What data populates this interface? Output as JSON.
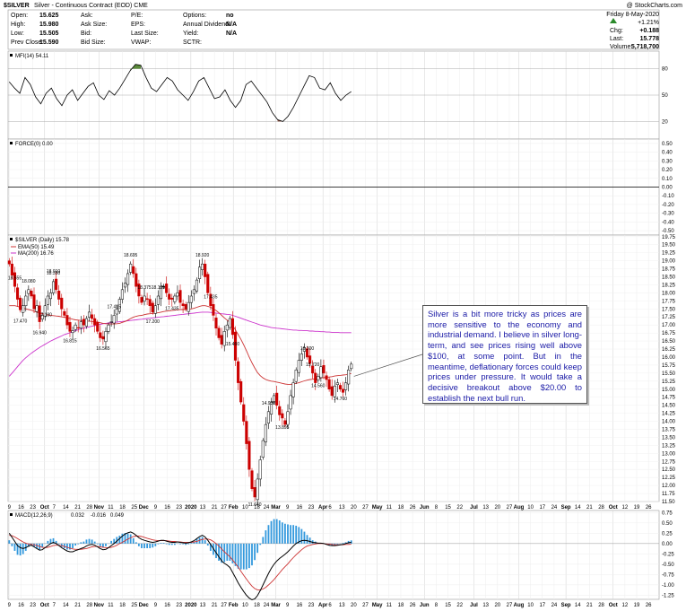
{
  "header": {
    "title_symbol": "$SILVER",
    "title_desc": "Silver - Continuous Contract (EOD) CME",
    "watermark": "@ StockCharts.com",
    "date": "Friday  8-May-2020",
    "fields": [
      {
        "label": "Open:",
        "value": "15.625"
      },
      {
        "label": "High:",
        "value": "15.980"
      },
      {
        "label": "Low:",
        "value": "15.505"
      },
      {
        "label": "Prev Close:",
        "value": "15.590"
      }
    ],
    "fields2": [
      {
        "label": "Ask:",
        "value": ""
      },
      {
        "label": "Ask Size:",
        "value": ""
      },
      {
        "label": "Bid:",
        "value": ""
      },
      {
        "label": "Bid Size:",
        "value": ""
      }
    ],
    "fields3": [
      {
        "label": "P/E:",
        "value": ""
      },
      {
        "label": "EPS:",
        "value": ""
      },
      {
        "label": "Last Size:",
        "value": ""
      },
      {
        "label": "VWAP:",
        "value": ""
      }
    ],
    "fields4": [
      {
        "label": "Options:",
        "value": "no"
      },
      {
        "label": "Annual Dividend:",
        "value": "N/A"
      },
      {
        "label": "Yield:",
        "value": "N/A"
      },
      {
        "label": "SCTR:",
        "value": ""
      }
    ],
    "change_pct": "+1.21%",
    "chg_label": "Chg:",
    "chg_value": "+0.188",
    "last_label": "Last:",
    "last_value": "15.778",
    "vol_label": "Volume:",
    "vol_value": "5,718,700"
  },
  "annotation": "Silver is a bit more tricky as prices are more sensitive to the economy and industrial demand. I believe in silver long-term, and see prices rising well above $100, at some point. But in the meantime, deflationary forces could keep prices under pressure. It would take a decisive breakout above $20.00 to establish the next bull run.",
  "colors": {
    "up": "#000000",
    "down": "#cc0000",
    "ema": "#cc3333",
    "ma": "#cc33cc",
    "mfi_over": "#5a8a3a",
    "mfi_under": "#8a4a3a",
    "macd_hist": "#3399dd",
    "signal": "#cc3333"
  },
  "chart_data": [
    {
      "type": "line",
      "title": "MFI(14) 54.11",
      "y_ticks": [
        80,
        50,
        20
      ],
      "ylim": [
        0,
        100
      ],
      "values": [
        65,
        58,
        52,
        70,
        62,
        48,
        40,
        52,
        58,
        46,
        38,
        50,
        56,
        44,
        52,
        60,
        64,
        50,
        45,
        55,
        50,
        58,
        68,
        78,
        85,
        84,
        70,
        58,
        54,
        62,
        70,
        66,
        56,
        50,
        44,
        54,
        66,
        70,
        58,
        46,
        48,
        56,
        44,
        36,
        44,
        62,
        66,
        58,
        50,
        42,
        30,
        22,
        20,
        26,
        36,
        48,
        60,
        72,
        70,
        58,
        56,
        64,
        52,
        44,
        50,
        54
      ]
    },
    {
      "type": "line",
      "title": "FORCE(0) 0.00",
      "y_ticks": [
        "0.50",
        "0.40",
        "0.30",
        "0.20",
        "0.10",
        "0.00",
        "-0.10",
        "-0.20",
        "-0.30",
        "-0.40",
        "-0.50"
      ],
      "ylim": [
        -0.55,
        0.55
      ],
      "values": [
        0
      ]
    },
    {
      "type": "candlestick",
      "title": "$SILVER (Daily) 15.78",
      "legend": [
        "EMA(50) 15.49",
        "MA(200) 16.76"
      ],
      "ylim": [
        11.5,
        19.8
      ],
      "y_ticks": [
        "19.75",
        "19.50",
        "19.25",
        "19.00",
        "18.75",
        "18.50",
        "18.25",
        "18.00",
        "17.75",
        "17.50",
        "17.25",
        "17.00",
        "16.75",
        "16.50",
        "16.25",
        "16.00",
        "15.75",
        "15.50",
        "15.25",
        "15.00",
        "14.75",
        "14.50",
        "14.25",
        "14.00",
        "13.75",
        "13.50",
        "13.25",
        "13.00",
        "12.75",
        "12.50",
        "12.25",
        "12.00",
        "11.75",
        "11.50"
      ],
      "closes": [
        18.9,
        18.55,
        18.2,
        17.8,
        17.47,
        17.6,
        17.9,
        18.1,
        17.9,
        17.5,
        17.6,
        17.1,
        17.3,
        17.6,
        17.9,
        18.0,
        18.35,
        18.1,
        17.8,
        17.5,
        17.3,
        17.0,
        16.8,
        16.82,
        17.0,
        16.9,
        17.1,
        17.0,
        17.2,
        17.4,
        17.2,
        17.0,
        16.8,
        16.6,
        16.56,
        16.8,
        17.0,
        17.1,
        17.3,
        17.5,
        17.8,
        18.1,
        18.3,
        18.6,
        18.9,
        18.6,
        18.2,
        17.9,
        17.7,
        17.9,
        17.8,
        17.6,
        17.4,
        17.6,
        17.9,
        18.2,
        18.2,
        18.0,
        17.8,
        17.8,
        17.9,
        18.0,
        17.7,
        17.6,
        17.5,
        17.7,
        17.9,
        18.1,
        18.4,
        18.8,
        18.9,
        18.5,
        18.0,
        17.6,
        17.3,
        16.9,
        16.6,
        16.4,
        16.8,
        17.0,
        17.2,
        16.7,
        15.9,
        15.2,
        14.6,
        14.0,
        13.3,
        12.5,
        11.9,
        11.64,
        12.2,
        12.8,
        13.4,
        13.9,
        14.3,
        14.6,
        14.8,
        14.5,
        14.2,
        14.1,
        13.9,
        14.3,
        14.8,
        15.2,
        15.6,
        15.9,
        16.1,
        16.3,
        16.0,
        15.8,
        15.5,
        15.2,
        15.4,
        15.7,
        15.5,
        15.3,
        15.0,
        14.8,
        15.1,
        15.2,
        15.0,
        14.9,
        15.2,
        15.6,
        15.78
      ],
      "price_labels": [
        {
          "text": "18.555"
        },
        {
          "text": "18.910"
        },
        {
          "text": "17.470"
        },
        {
          "text": "18.080"
        },
        {
          "text": "16.940"
        },
        {
          "text": "17.180"
        },
        {
          "text": "18.350"
        },
        {
          "text": "16.815"
        },
        {
          "text": "16.565"
        },
        {
          "text": "17.415"
        },
        {
          "text": "18.695"
        },
        {
          "text": "18.375"
        },
        {
          "text": "17.200"
        },
        {
          "text": "18.125"
        },
        {
          "text": "17.435"
        },
        {
          "text": "18.920"
        },
        {
          "text": "17.435"
        },
        {
          "text": "15.460"
        },
        {
          "text": "11.640"
        },
        {
          "text": "14.930"
        },
        {
          "text": "13.895"
        },
        {
          "text": "16.300"
        },
        {
          "text": "15.720"
        },
        {
          "text": "14.560"
        },
        {
          "text": "14.760"
        }
      ],
      "ema50": [
        17.6,
        17.6,
        17.6,
        17.58,
        17.55,
        17.52,
        17.5,
        17.48,
        17.46,
        17.43,
        17.4,
        17.37,
        17.35,
        17.33,
        17.31,
        17.3,
        17.29,
        17.28,
        17.27,
        17.25,
        17.24,
        17.22,
        17.2,
        17.18,
        17.16,
        17.15,
        17.14,
        17.13,
        17.12,
        17.12,
        17.11,
        17.1,
        17.09,
        17.07,
        17.05,
        17.04,
        17.03,
        17.03,
        17.03,
        17.04,
        17.05,
        17.08,
        17.11,
        17.15,
        17.2,
        17.24,
        17.27,
        17.29,
        17.3,
        17.32,
        17.34,
        17.35,
        17.36,
        17.37,
        17.38,
        17.4,
        17.42,
        17.43,
        17.44,
        17.45,
        17.46,
        17.47,
        17.48,
        17.48,
        17.48,
        17.49,
        17.5,
        17.52,
        17.55,
        17.58,
        17.6,
        17.6,
        17.58,
        17.55,
        17.5,
        17.45,
        17.38,
        17.3,
        17.22,
        17.15,
        17.08,
        16.98,
        16.85,
        16.7,
        16.55,
        16.38,
        16.2,
        16.0,
        15.82,
        15.66,
        15.52,
        15.42,
        15.35,
        15.3,
        15.27,
        15.25,
        15.24,
        15.22,
        15.2,
        15.18,
        15.16,
        15.15,
        15.15,
        15.16,
        15.18,
        15.2,
        15.23,
        15.26,
        15.28,
        15.3,
        15.31,
        15.32,
        15.33,
        15.35,
        15.36,
        15.37,
        15.38,
        15.39,
        15.41,
        15.42,
        15.43,
        15.44,
        15.45,
        15.47,
        15.49
      ],
      "ma200": [
        15.4,
        15.5,
        15.6,
        15.7,
        15.8,
        15.9,
        15.98,
        16.05,
        16.12,
        16.18,
        16.24,
        16.3,
        16.35,
        16.4,
        16.45,
        16.5,
        16.54,
        16.58,
        16.62,
        16.66,
        16.7,
        16.73,
        16.76,
        16.79,
        16.82,
        16.85,
        16.88,
        16.9,
        16.92,
        16.94,
        16.96,
        16.98,
        17.0,
        17.02,
        17.04,
        17.05,
        17.06,
        17.07,
        17.08,
        17.09,
        17.1,
        17.11,
        17.12,
        17.13,
        17.14,
        17.15,
        17.16,
        17.17,
        17.18,
        17.19,
        17.2,
        17.21,
        17.22,
        17.23,
        17.24,
        17.25,
        17.26,
        17.27,
        17.28,
        17.29,
        17.3,
        17.31,
        17.32,
        17.33,
        17.34,
        17.35,
        17.36,
        17.37,
        17.38,
        17.39,
        17.4,
        17.4,
        17.4,
        17.39,
        17.38,
        17.37,
        17.36,
        17.35,
        17.34,
        17.33,
        17.32,
        17.3,
        17.27,
        17.24,
        17.21,
        17.18,
        17.15,
        17.12,
        17.09,
        17.06,
        17.03,
        17.0,
        16.98,
        16.96,
        16.94,
        16.92,
        16.91,
        16.9,
        16.89,
        16.88,
        16.87,
        16.86,
        16.85,
        16.84,
        16.84,
        16.83,
        16.83,
        16.82,
        16.82,
        16.81,
        16.81,
        16.8,
        16.8,
        16.79,
        16.79,
        16.78,
        16.78,
        16.77,
        16.77,
        16.77,
        16.76,
        16.76,
        16.76,
        16.76,
        16.76
      ]
    },
    {
      "type": "line",
      "title": "MACD(12,26,9)",
      "legend": [
        "0.032",
        "-0.016",
        "0.049"
      ],
      "ylim": [
        -1.35,
        0.8
      ],
      "y_ticks": [
        "0.75",
        "0.50",
        "0.25",
        "0.00",
        "-0.25",
        "-0.50",
        "-0.75",
        "-1.00",
        "-1.25"
      ],
      "macd": [
        0.25,
        0.15,
        0.05,
        -0.05,
        -0.1,
        -0.12,
        -0.1,
        -0.06,
        -0.04,
        -0.08,
        -0.12,
        -0.16,
        -0.15,
        -0.1,
        -0.05,
        0.0,
        0.03,
        0.0,
        -0.05,
        -0.1,
        -0.14,
        -0.18,
        -0.2,
        -0.2,
        -0.17,
        -0.15,
        -0.12,
        -0.1,
        -0.06,
        -0.03,
        -0.02,
        -0.04,
        -0.08,
        -0.12,
        -0.15,
        -0.14,
        -0.1,
        -0.05,
        0.0,
        0.06,
        0.12,
        0.18,
        0.23,
        0.26,
        0.28,
        0.25,
        0.2,
        0.14,
        0.1,
        0.08,
        0.06,
        0.04,
        0.03,
        0.04,
        0.06,
        0.08,
        0.08,
        0.06,
        0.04,
        0.03,
        0.03,
        0.04,
        0.03,
        0.02,
        0.01,
        0.02,
        0.04,
        0.07,
        0.12,
        0.17,
        0.2,
        0.16,
        0.08,
        -0.02,
        -0.12,
        -0.22,
        -0.32,
        -0.42,
        -0.48,
        -0.52,
        -0.58,
        -0.7,
        -0.82,
        -0.95,
        -1.06,
        -1.16,
        -1.25,
        -1.32,
        -1.36,
        -1.34,
        -1.26,
        -1.14,
        -1.0,
        -0.86,
        -0.72,
        -0.6,
        -0.5,
        -0.42,
        -0.36,
        -0.31,
        -0.26,
        -0.2,
        -0.13,
        -0.06,
        0.0,
        0.04,
        0.07,
        0.08,
        0.07,
        0.05,
        0.03,
        0.02,
        0.01,
        0.01,
        0.0,
        -0.02,
        -0.04,
        -0.05,
        -0.05,
        -0.04,
        -0.03,
        -0.02,
        0.0,
        0.02,
        0.032
      ],
      "signal": [
        0.2,
        0.19,
        0.16,
        0.12,
        0.08,
        0.04,
        0.01,
        -0.01,
        -0.02,
        -0.03,
        -0.05,
        -0.07,
        -0.09,
        -0.1,
        -0.09,
        -0.07,
        -0.05,
        -0.04,
        -0.04,
        -0.05,
        -0.07,
        -0.09,
        -0.11,
        -0.13,
        -0.14,
        -0.14,
        -0.14,
        -0.13,
        -0.12,
        -0.1,
        -0.08,
        -0.07,
        -0.07,
        -0.08,
        -0.09,
        -0.1,
        -0.1,
        -0.09,
        -0.07,
        -0.04,
        0.0,
        0.03,
        0.07,
        0.11,
        0.14,
        0.17,
        0.18,
        0.18,
        0.17,
        0.15,
        0.13,
        0.11,
        0.09,
        0.08,
        0.07,
        0.07,
        0.07,
        0.07,
        0.06,
        0.05,
        0.05,
        0.04,
        0.04,
        0.03,
        0.03,
        0.03,
        0.03,
        0.04,
        0.05,
        0.08,
        0.1,
        0.11,
        0.11,
        0.09,
        0.05,
        0.0,
        -0.06,
        -0.13,
        -0.2,
        -0.26,
        -0.32,
        -0.4,
        -0.48,
        -0.57,
        -0.67,
        -0.77,
        -0.86,
        -0.95,
        -1.03,
        -1.09,
        -1.12,
        -1.12,
        -1.1,
        -1.06,
        -1.0,
        -0.94,
        -0.87,
        -0.79,
        -0.71,
        -0.63,
        -0.56,
        -0.49,
        -0.41,
        -0.34,
        -0.27,
        -0.21,
        -0.15,
        -0.1,
        -0.06,
        -0.04,
        -0.02,
        -0.01,
        0.0,
        0.0,
        0.0,
        -0.01,
        -0.01,
        -0.02,
        -0.03,
        -0.03,
        -0.03,
        -0.03,
        -0.02,
        -0.02,
        -0.016
      ]
    }
  ],
  "x_axis": {
    "labels": [
      {
        "t": "9",
        "i": 0
      },
      {
        "t": "16",
        "i": 5
      },
      {
        "t": "23",
        "i": 10
      },
      {
        "t": "Oct",
        "i": 15,
        "b": true
      },
      {
        "t": "7",
        "i": 19
      },
      {
        "t": "14",
        "i": 24
      },
      {
        "t": "21",
        "i": 29
      },
      {
        "t": "28",
        "i": 34
      },
      {
        "t": "Nov",
        "i": 38,
        "b": true
      },
      {
        "t": "11",
        "i": 43
      },
      {
        "t": "18",
        "i": 48
      },
      {
        "t": "25",
        "i": 53
      },
      {
        "t": "Dec",
        "i": 57,
        "b": true
      },
      {
        "t": "9",
        "i": 62
      },
      {
        "t": "16",
        "i": 67
      },
      {
        "t": "23",
        "i": 72
      },
      {
        "t": "2020",
        "i": 77,
        "b": true
      },
      {
        "t": "13",
        "i": 82
      },
      {
        "t": "21",
        "i": 87
      },
      {
        "t": "27",
        "i": 91
      },
      {
        "t": "Feb",
        "i": 95,
        "b": true
      },
      {
        "t": "10",
        "i": 100
      },
      {
        "t": "18",
        "i": 105
      },
      {
        "t": "24",
        "i": 109
      },
      {
        "t": "Mar",
        "i": 113,
        "b": true
      },
      {
        "t": "9",
        "i": 118
      },
      {
        "t": "16",
        "i": 123
      },
      {
        "t": "23",
        "i": 128
      },
      {
        "t": "Apr",
        "i": 133,
        "b": true
      },
      {
        "t": "6",
        "i": 136
      },
      {
        "t": "13",
        "i": 141
      },
      {
        "t": "20",
        "i": 146
      },
      {
        "t": "27",
        "i": 151
      },
      {
        "t": "May",
        "i": 156,
        "b": true
      },
      {
        "t": "11",
        "i": 161
      },
      {
        "t": "18",
        "i": 166
      },
      {
        "t": "26",
        "i": 171
      },
      {
        "t": "Jun",
        "i": 176,
        "b": true
      },
      {
        "t": "8",
        "i": 181
      },
      {
        "t": "15",
        "i": 186
      },
      {
        "t": "22",
        "i": 191
      },
      {
        "t": "Jul",
        "i": 197,
        "b": true
      },
      {
        "t": "13",
        "i": 202
      },
      {
        "t": "20",
        "i": 207
      },
      {
        "t": "27",
        "i": 212
      },
      {
        "t": "Aug",
        "i": 216,
        "b": true
      },
      {
        "t": "10",
        "i": 221
      },
      {
        "t": "17",
        "i": 226
      },
      {
        "t": "24",
        "i": 231
      },
      {
        "t": "Sep",
        "i": 236,
        "b": true
      },
      {
        "t": "14",
        "i": 241
      },
      {
        "t": "21",
        "i": 246
      },
      {
        "t": "28",
        "i": 251
      },
      {
        "t": "Oct",
        "i": 256,
        "b": true
      },
      {
        "t": "12",
        "i": 261
      },
      {
        "t": "19",
        "i": 266
      },
      {
        "t": "26",
        "i": 271
      }
    ]
  }
}
